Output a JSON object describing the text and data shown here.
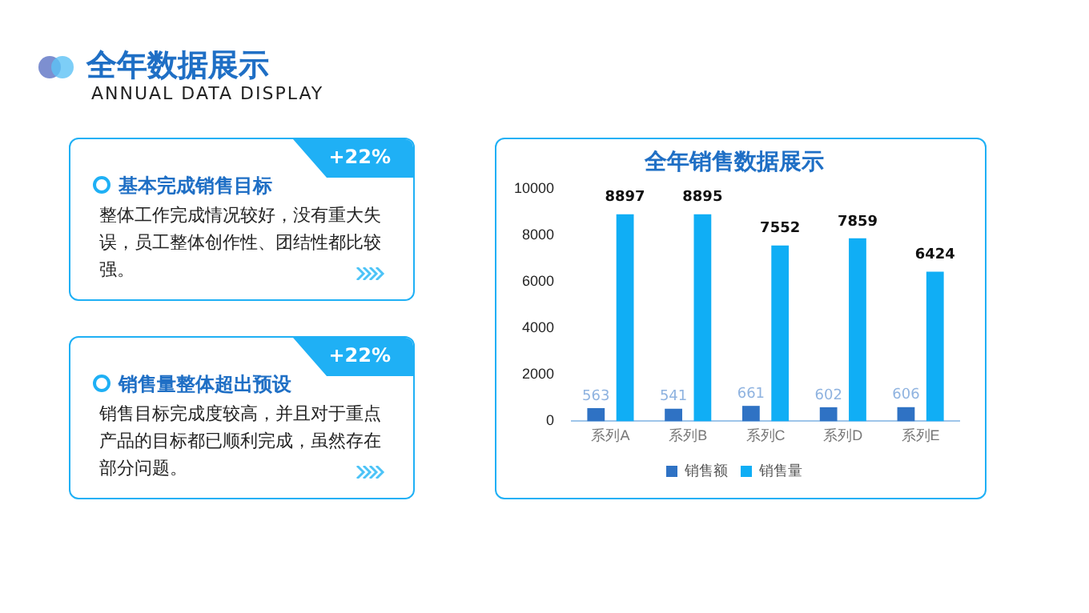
{
  "chart_data": {
    "type": "bar",
    "title": "全年销售数据展示",
    "categories": [
      "系列A",
      "系列B",
      "系列C",
      "系列D",
      "系列E"
    ],
    "series": [
      {
        "name": "销售额",
        "color": "#2f72c4",
        "values": [
          563,
          541,
          661,
          602,
          606
        ]
      },
      {
        "name": "销售量",
        "color": "#10aef5",
        "values": [
          8897,
          8895,
          7552,
          7859,
          6424
        ]
      }
    ],
    "ylim": [
      0,
      10000
    ],
    "yticks": [
      0,
      2000,
      4000,
      6000,
      8000,
      10000
    ],
    "grid": false,
    "legend": "bottom",
    "data_labels": true,
    "annotations": [
      "全年数据展示",
      "ANNUAL DATA DISPLAY",
      "+22%",
      "基本完成销售目标",
      "整体工作完成情况较好，没有重大失误，员工整体创作性、团结性都比较强。",
      "+22%",
      "销售量整体超出预设",
      "销售目标完成度较高，并且对于重点产品的目标都已顺利完成，虽然存在部分问题。"
    ]
  }
}
